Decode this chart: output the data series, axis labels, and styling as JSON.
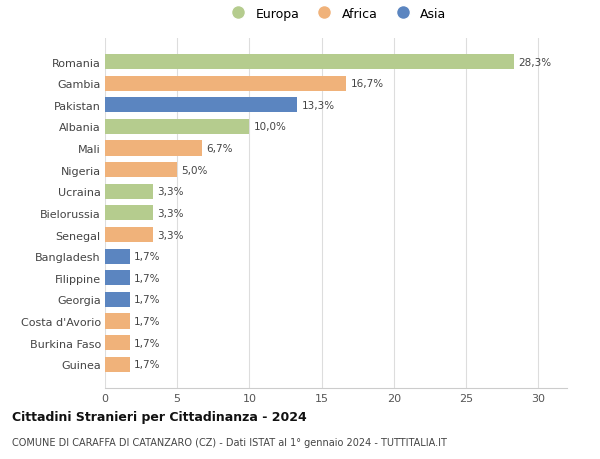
{
  "categories": [
    "Romania",
    "Gambia",
    "Pakistan",
    "Albania",
    "Mali",
    "Nigeria",
    "Ucraina",
    "Bielorussia",
    "Senegal",
    "Bangladesh",
    "Filippine",
    "Georgia",
    "Costa d'Avorio",
    "Burkina Faso",
    "Guinea"
  ],
  "values": [
    28.3,
    16.7,
    13.3,
    10.0,
    6.7,
    5.0,
    3.3,
    3.3,
    3.3,
    1.7,
    1.7,
    1.7,
    1.7,
    1.7,
    1.7
  ],
  "labels": [
    "28,3%",
    "16,7%",
    "13,3%",
    "10,0%",
    "6,7%",
    "5,0%",
    "3,3%",
    "3,3%",
    "3,3%",
    "1,7%",
    "1,7%",
    "1,7%",
    "1,7%",
    "1,7%",
    "1,7%"
  ],
  "continents": [
    "Europa",
    "Africa",
    "Asia",
    "Europa",
    "Africa",
    "Africa",
    "Europa",
    "Europa",
    "Africa",
    "Asia",
    "Asia",
    "Asia",
    "Africa",
    "Africa",
    "Africa"
  ],
  "colors": {
    "Europa": "#b5cc8e",
    "Africa": "#f0b27a",
    "Asia": "#5b85c0"
  },
  "legend_labels": [
    "Europa",
    "Africa",
    "Asia"
  ],
  "title1": "Cittadini Stranieri per Cittadinanza - 2024",
  "title2": "COMUNE DI CARAFFA DI CATANZARO (CZ) - Dati ISTAT al 1° gennaio 2024 - TUTTITALIA.IT",
  "xlim": [
    0,
    32
  ],
  "xticks": [
    0,
    5,
    10,
    15,
    20,
    25,
    30
  ],
  "background_color": "#ffffff",
  "grid_color": "#dddddd"
}
